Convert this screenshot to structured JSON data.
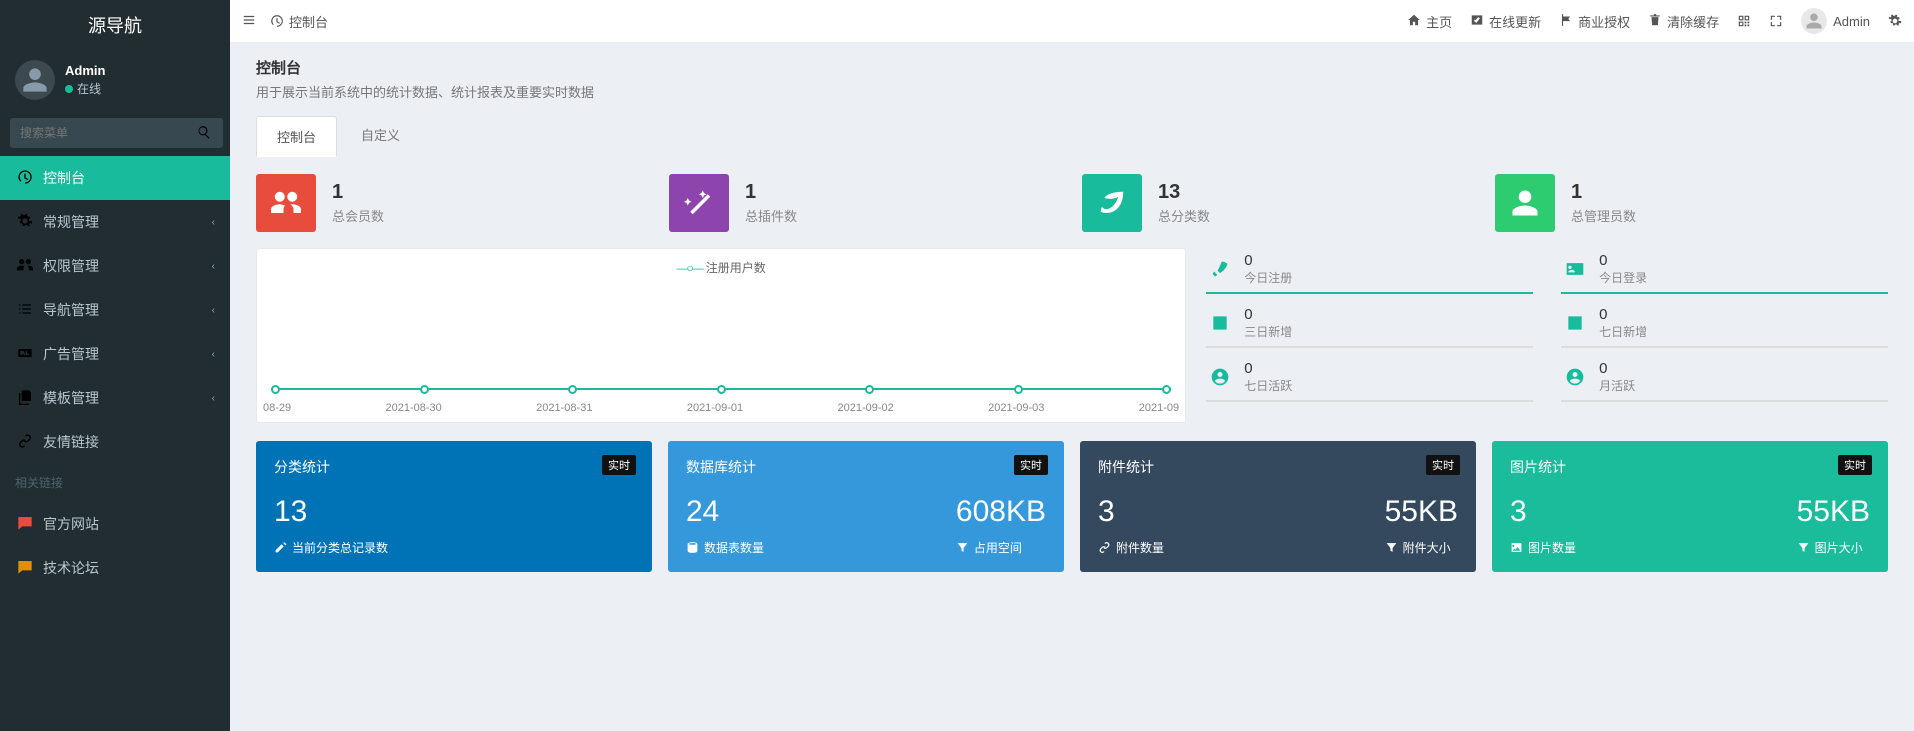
{
  "brand": "源导航",
  "user": {
    "name": "Admin",
    "status": "在线"
  },
  "search": {
    "placeholder": "搜索菜单"
  },
  "sidemenu": [
    {
      "icon": "dashboard",
      "label": "控制台",
      "active": true
    },
    {
      "icon": "cogs",
      "label": "常规管理",
      "chev": true
    },
    {
      "icon": "users",
      "label": "权限管理",
      "chev": true
    },
    {
      "icon": "list",
      "label": "导航管理",
      "chev": true
    },
    {
      "icon": "ad",
      "label": "广告管理",
      "chev": true
    },
    {
      "icon": "copy",
      "label": "模板管理",
      "chev": true
    },
    {
      "icon": "link",
      "label": "友情链接"
    }
  ],
  "sideheader": "相关链接",
  "sidelinks": [
    {
      "label": "官方网站",
      "color": "#e74c3c"
    },
    {
      "label": "技术论坛",
      "color": "#e08e0b"
    }
  ],
  "topbar": {
    "crumb": "控制台",
    "items": [
      {
        "icon": "home",
        "label": "主页"
      },
      {
        "icon": "vimeo",
        "label": "在线更新"
      },
      {
        "icon": "flag",
        "label": "商业授权"
      },
      {
        "icon": "trash",
        "label": "清除缓存"
      }
    ],
    "admin": "Admin"
  },
  "page": {
    "title": "控制台",
    "desc": "用于展示当前系统中的统计数据、统计报表及重要实时数据"
  },
  "tabs": [
    "控制台",
    "自定义"
  ],
  "stats": [
    {
      "color": "#e74c3c",
      "icon": "users",
      "num": "1",
      "label": "总会员数"
    },
    {
      "color": "#8e44ad",
      "icon": "magic",
      "num": "1",
      "label": "总插件数"
    },
    {
      "color": "#18bc9c",
      "icon": "leaf",
      "num": "13",
      "label": "总分类数"
    },
    {
      "color": "#2ecc71",
      "icon": "user",
      "num": "1",
      "label": "总管理员数"
    }
  ],
  "chart": {
    "legend": "注册用户数",
    "xaxis": [
      "08-29",
      "2021-08-30",
      "2021-08-31",
      "2021-09-01",
      "2021-09-02",
      "2021-09-03",
      "2021-09"
    ]
  },
  "mini": [
    {
      "icon": "rocket",
      "n": "0",
      "l": "今日注册",
      "green": true
    },
    {
      "icon": "idcard",
      "n": "0",
      "l": "今日登录",
      "green": true
    },
    {
      "icon": "calendar",
      "n": "0",
      "l": "三日新增"
    },
    {
      "icon": "calplus",
      "n": "0",
      "l": "七日新增"
    },
    {
      "icon": "usercircle",
      "n": "0",
      "l": "七日活跃"
    },
    {
      "icon": "usercircle",
      "n": "0",
      "l": "月活跃"
    }
  ],
  "big": [
    {
      "color": "c-blue",
      "title": "分类统计",
      "badge": "实时",
      "cols": [
        {
          "val": "13",
          "sub": "当前分类总记录数",
          "icon": "edit"
        }
      ]
    },
    {
      "color": "c-blue2",
      "title": "数据库统计",
      "badge": "实时",
      "cols": [
        {
          "val": "24",
          "sub": "数据表数量",
          "icon": "database"
        },
        {
          "val": "608KB",
          "sub": "占用空间",
          "icon": "filter"
        }
      ]
    },
    {
      "color": "c-slate",
      "title": "附件统计",
      "badge": "实时",
      "cols": [
        {
          "val": "3",
          "sub": "附件数量",
          "icon": "link"
        },
        {
          "val": "55KB",
          "sub": "附件大小",
          "icon": "filter"
        }
      ]
    },
    {
      "color": "c-teal2",
      "title": "图片统计",
      "badge": "实时",
      "cols": [
        {
          "val": "3",
          "sub": "图片数量",
          "icon": "image"
        },
        {
          "val": "55KB",
          "sub": "图片大小",
          "icon": "filter"
        }
      ]
    }
  ]
}
